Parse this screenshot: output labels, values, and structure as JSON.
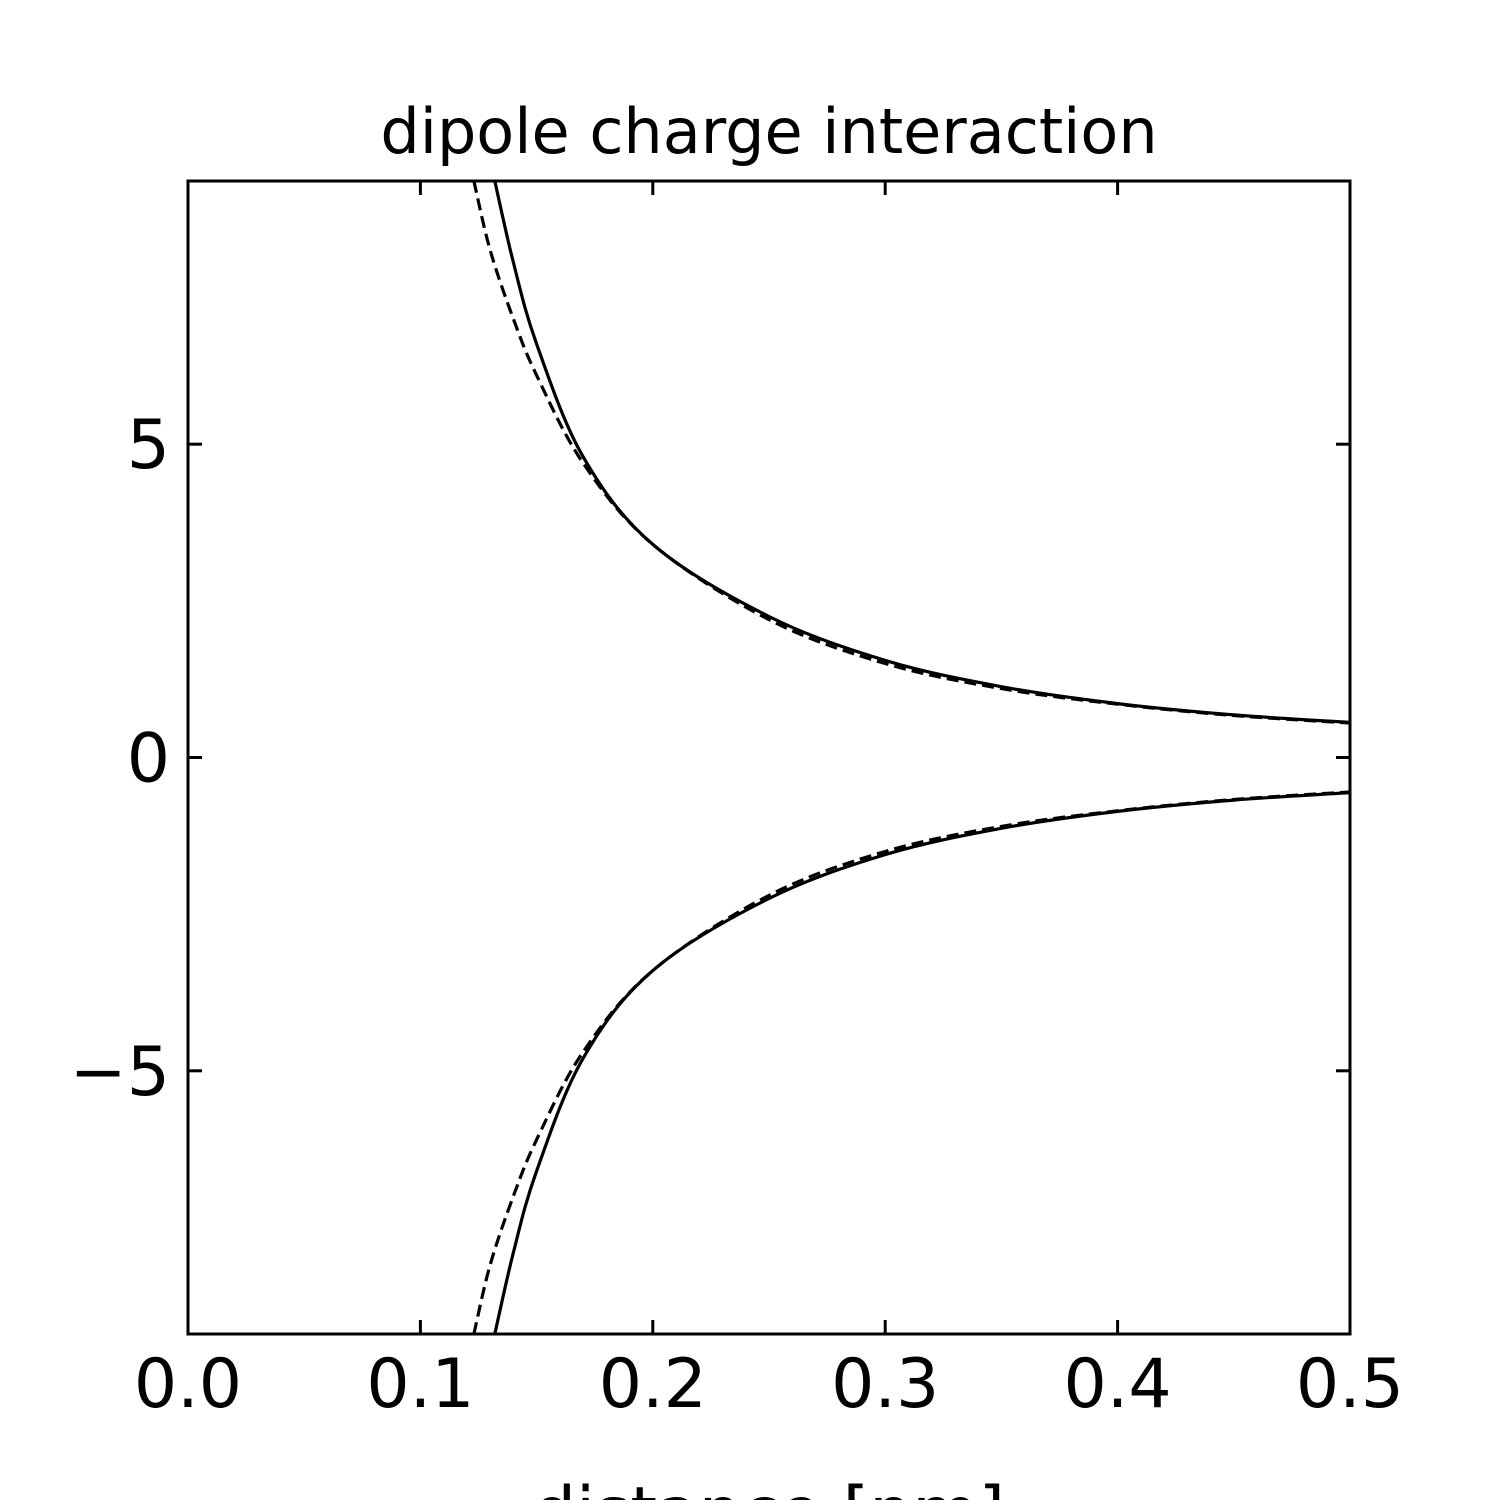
{
  "chart_data": {
    "type": "line",
    "title": "dipole charge interaction",
    "xlabel": "distance [nm]",
    "ylabel": "",
    "xlim": [
      0.0,
      0.5
    ],
    "ylim": [
      -9.2,
      9.2
    ],
    "xticks": [
      0.0,
      0.1,
      0.2,
      0.3,
      0.4,
      0.5
    ],
    "xtick_labels": [
      "0.0",
      "0.1",
      "0.2",
      "0.3",
      "0.4",
      "0.5"
    ],
    "yticks": [
      -5,
      0,
      5
    ],
    "ytick_labels": [
      "−5",
      "0",
      "5"
    ],
    "grid": false,
    "legend": "none",
    "series": [
      {
        "style": "solid",
        "x": [
          0.132,
          0.14,
          0.15,
          0.17,
          0.2,
          0.25,
          0.3,
          0.35,
          0.4,
          0.45,
          0.5
        ],
        "y": [
          9.2,
          7.9,
          6.6,
          4.8,
          3.4,
          2.25,
          1.55,
          1.13,
          0.86,
          0.68,
          0.56
        ]
      },
      {
        "style": "dashed",
        "x": [
          0.123,
          0.13,
          0.14,
          0.15,
          0.17,
          0.2,
          0.25,
          0.3,
          0.35,
          0.4,
          0.45,
          0.5
        ],
        "y": [
          9.2,
          8.1,
          7.0,
          6.1,
          4.7,
          3.4,
          2.2,
          1.5,
          1.1,
          0.85,
          0.67,
          0.55
        ]
      },
      {
        "style": "solid",
        "x": [
          0.132,
          0.14,
          0.15,
          0.17,
          0.2,
          0.25,
          0.3,
          0.35,
          0.4,
          0.45,
          0.5
        ],
        "y": [
          -9.2,
          -7.9,
          -6.6,
          -4.8,
          -3.4,
          -2.25,
          -1.55,
          -1.13,
          -0.86,
          -0.68,
          -0.56
        ]
      },
      {
        "style": "dashed",
        "x": [
          0.123,
          0.13,
          0.14,
          0.15,
          0.17,
          0.2,
          0.25,
          0.3,
          0.35,
          0.4,
          0.45,
          0.5
        ],
        "y": [
          -9.2,
          -8.1,
          -7.0,
          -6.1,
          -4.7,
          -3.4,
          -2.2,
          -1.5,
          -1.1,
          -0.85,
          -0.67,
          -0.55
        ]
      }
    ]
  }
}
